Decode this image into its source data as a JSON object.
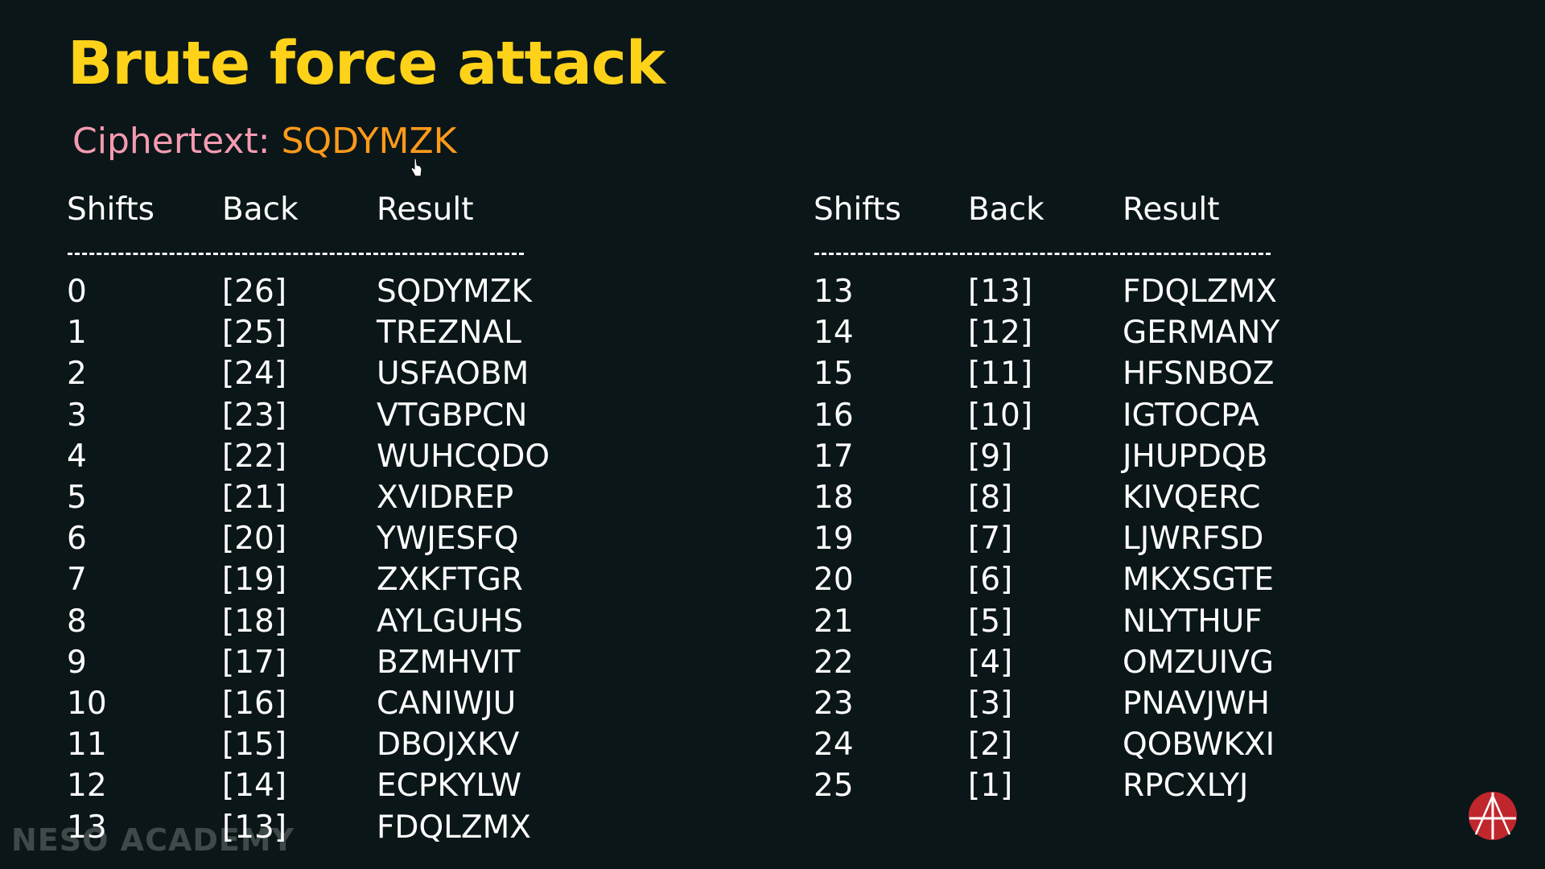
{
  "title": "Brute force attack",
  "ciphertext": {
    "label": "Ciphertext:",
    "value": "SQDYMZK"
  },
  "table_headers": [
    "Shifts",
    "Back",
    "Result"
  ],
  "left_rows": [
    [
      "0",
      "[26]",
      "SQDYMZK"
    ],
    [
      "1",
      "[25]",
      "TREZNAL"
    ],
    [
      "2",
      "[24]",
      "USFAOBM"
    ],
    [
      "3",
      "[23]",
      "VTGBPCN"
    ],
    [
      "4",
      "[22]",
      "WUHCQDO"
    ],
    [
      "5",
      "[21]",
      "XVIDREP"
    ],
    [
      "6",
      "[20]",
      "YWJESFQ"
    ],
    [
      "7",
      "[19]",
      "ZXKFTGR"
    ],
    [
      "8",
      "[18]",
      "AYLGUHS"
    ],
    [
      "9",
      "[17]",
      "BZMHVIT"
    ],
    [
      "10",
      "[16]",
      "CANIWJU"
    ],
    [
      "11",
      "[15]",
      "DBOJXKV"
    ],
    [
      "12",
      "[14]",
      "ECPKYLW"
    ],
    [
      "13",
      "[13]",
      "FDQLZMX"
    ]
  ],
  "right_rows": [
    [
      "13",
      "[13]",
      "FDQLZMX"
    ],
    [
      "14",
      "[12]",
      "GERMANY"
    ],
    [
      "15",
      "[11]",
      "HFSNBOZ"
    ],
    [
      "16",
      "[10]",
      "IGTOCPA"
    ],
    [
      "17",
      "[9]",
      "JHUPDQB"
    ],
    [
      "18",
      "[8]",
      "KIVQERC"
    ],
    [
      "19",
      "[7]",
      "LJWRFSD"
    ],
    [
      "20",
      "[6]",
      "MKXSGTE"
    ],
    [
      "21",
      "[5]",
      "NLYTHUF"
    ],
    [
      "22",
      "[4]",
      "OMZUIVG"
    ],
    [
      "23",
      "[3]",
      "PNAVJWH"
    ],
    [
      "24",
      "[2]",
      "QOBWKXI"
    ],
    [
      "25",
      "[1]",
      "RPCXLYJ"
    ]
  ],
  "watermark": "NESO ACADEMY",
  "colors": {
    "background": "#0b1618",
    "title": "#ffd21a",
    "cipher_label": "#f49bb0",
    "cipher_value": "#ff9a1a",
    "logo": "#c0272d"
  }
}
